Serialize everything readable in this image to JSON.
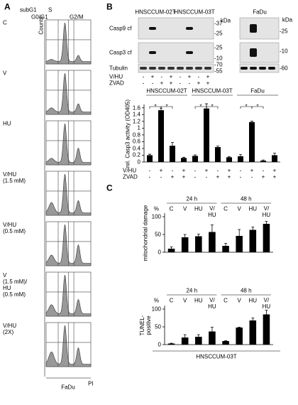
{
  "panel_a": {
    "label": "A",
    "gate_labels": [
      "subG1",
      "S",
      "G0/G1",
      "G2/M"
    ],
    "y_label": "Counts",
    "x_label": "PI",
    "cell_line": "FaDu",
    "rows": [
      "C",
      "V",
      "HU",
      "V/HU\n(1.5 mM)",
      "V/HU\n(0.5 mM)",
      "V\n(1.5 mM)/\nHU\n(0.5 mM)",
      "V/HU\n(2X)"
    ]
  },
  "panel_b": {
    "label": "B",
    "blot_groups": [
      "HNSCCUM-02T",
      "HNSCCUM-03T",
      "FaDu"
    ],
    "blot_rows": [
      "Casp9 cf",
      "Casp3 cf",
      "Tubulin"
    ],
    "markers_left": {
      "unit": "kDa",
      "labels": [
        "-37",
        "-25",
        "-25",
        "-10",
        "-70",
        "-55"
      ]
    },
    "markers_right": {
      "unit": "kDa",
      "labels": [
        "-25",
        "-10",
        "-60"
      ]
    },
    "treatments": [
      {
        "name": "V/HU",
        "signs": [
          "-",
          "+",
          "-",
          "+",
          "-",
          "+",
          "-",
          "+"
        ]
      },
      {
        "name": "ZVAD",
        "signs": [
          "-",
          "-",
          "+",
          "+",
          "-",
          "-",
          "+",
          "+"
        ]
      }
    ]
  },
  "panel_c": {
    "label": "C",
    "cell_line": "HNSCCUM-03T"
  },
  "chart_data": [
    {
      "type": "bar",
      "ylabel": "rel. Casp3 activity (OD405)",
      "color": "#000000",
      "groups": [
        "HNSCCUM-02T",
        "HNSCCUM-03T",
        "FaDu"
      ],
      "values": [
        0.2,
        1.53,
        0.48,
        0.12,
        0.18,
        1.58,
        0.44,
        0.14,
        0.17,
        1.18,
        0.04,
        0.2
      ],
      "errors": [
        0.03,
        0.06,
        0.1,
        0.02,
        0.03,
        0.14,
        0.03,
        0.02,
        0.05,
        0.03,
        0.02,
        0.06
      ],
      "treatments": [
        {
          "name": "V/HU",
          "signs": [
            "-",
            "+",
            "-",
            "+",
            "-",
            "+",
            "-",
            "+",
            "-",
            "+",
            "-",
            "+"
          ]
        },
        {
          "name": "ZVAD",
          "signs": [
            "-",
            "-",
            "+",
            "+",
            "-",
            "-",
            "+",
            "+",
            "-",
            "-",
            "+",
            "+"
          ]
        }
      ],
      "significance": [
        "*",
        "*",
        "*",
        "*",
        "*",
        "*"
      ],
      "ylim": [
        0,
        1.7
      ],
      "yticks": [
        0,
        0.2,
        0.4,
        0.6,
        0.8,
        1,
        1.2,
        1.4,
        1.6
      ]
    },
    {
      "type": "bar",
      "ylabel": "mitochondrial damage",
      "unit": "%",
      "color": "#000000",
      "groups": [
        "24 h",
        "48 h"
      ],
      "categories": [
        "C",
        "V",
        "HU",
        "V/\nHU",
        "C",
        "V",
        "HU",
        "V/\nHU"
      ],
      "values": [
        10,
        42,
        45,
        57,
        18,
        46,
        63,
        80
      ],
      "errors": [
        5,
        8,
        6,
        20,
        7,
        18,
        8,
        7
      ],
      "ylim": [
        0,
        110
      ],
      "yticks": [
        0,
        50,
        100
      ]
    },
    {
      "type": "bar",
      "ylabel": "TUNEL-\npositive",
      "unit": "%",
      "color": "#000000",
      "groups": [
        "24 h",
        "48 h"
      ],
      "categories": [
        "C",
        "V",
        "HU",
        "V/\nHU",
        "C",
        "V",
        "HU",
        "V/\nHU"
      ],
      "values": [
        3,
        20,
        22,
        37,
        10,
        48,
        68,
        85
      ],
      "errors": [
        1,
        8,
        6,
        12,
        1,
        1,
        7,
        12
      ],
      "ylim": [
        0,
        110
      ],
      "yticks": [
        0,
        50,
        100
      ]
    }
  ]
}
